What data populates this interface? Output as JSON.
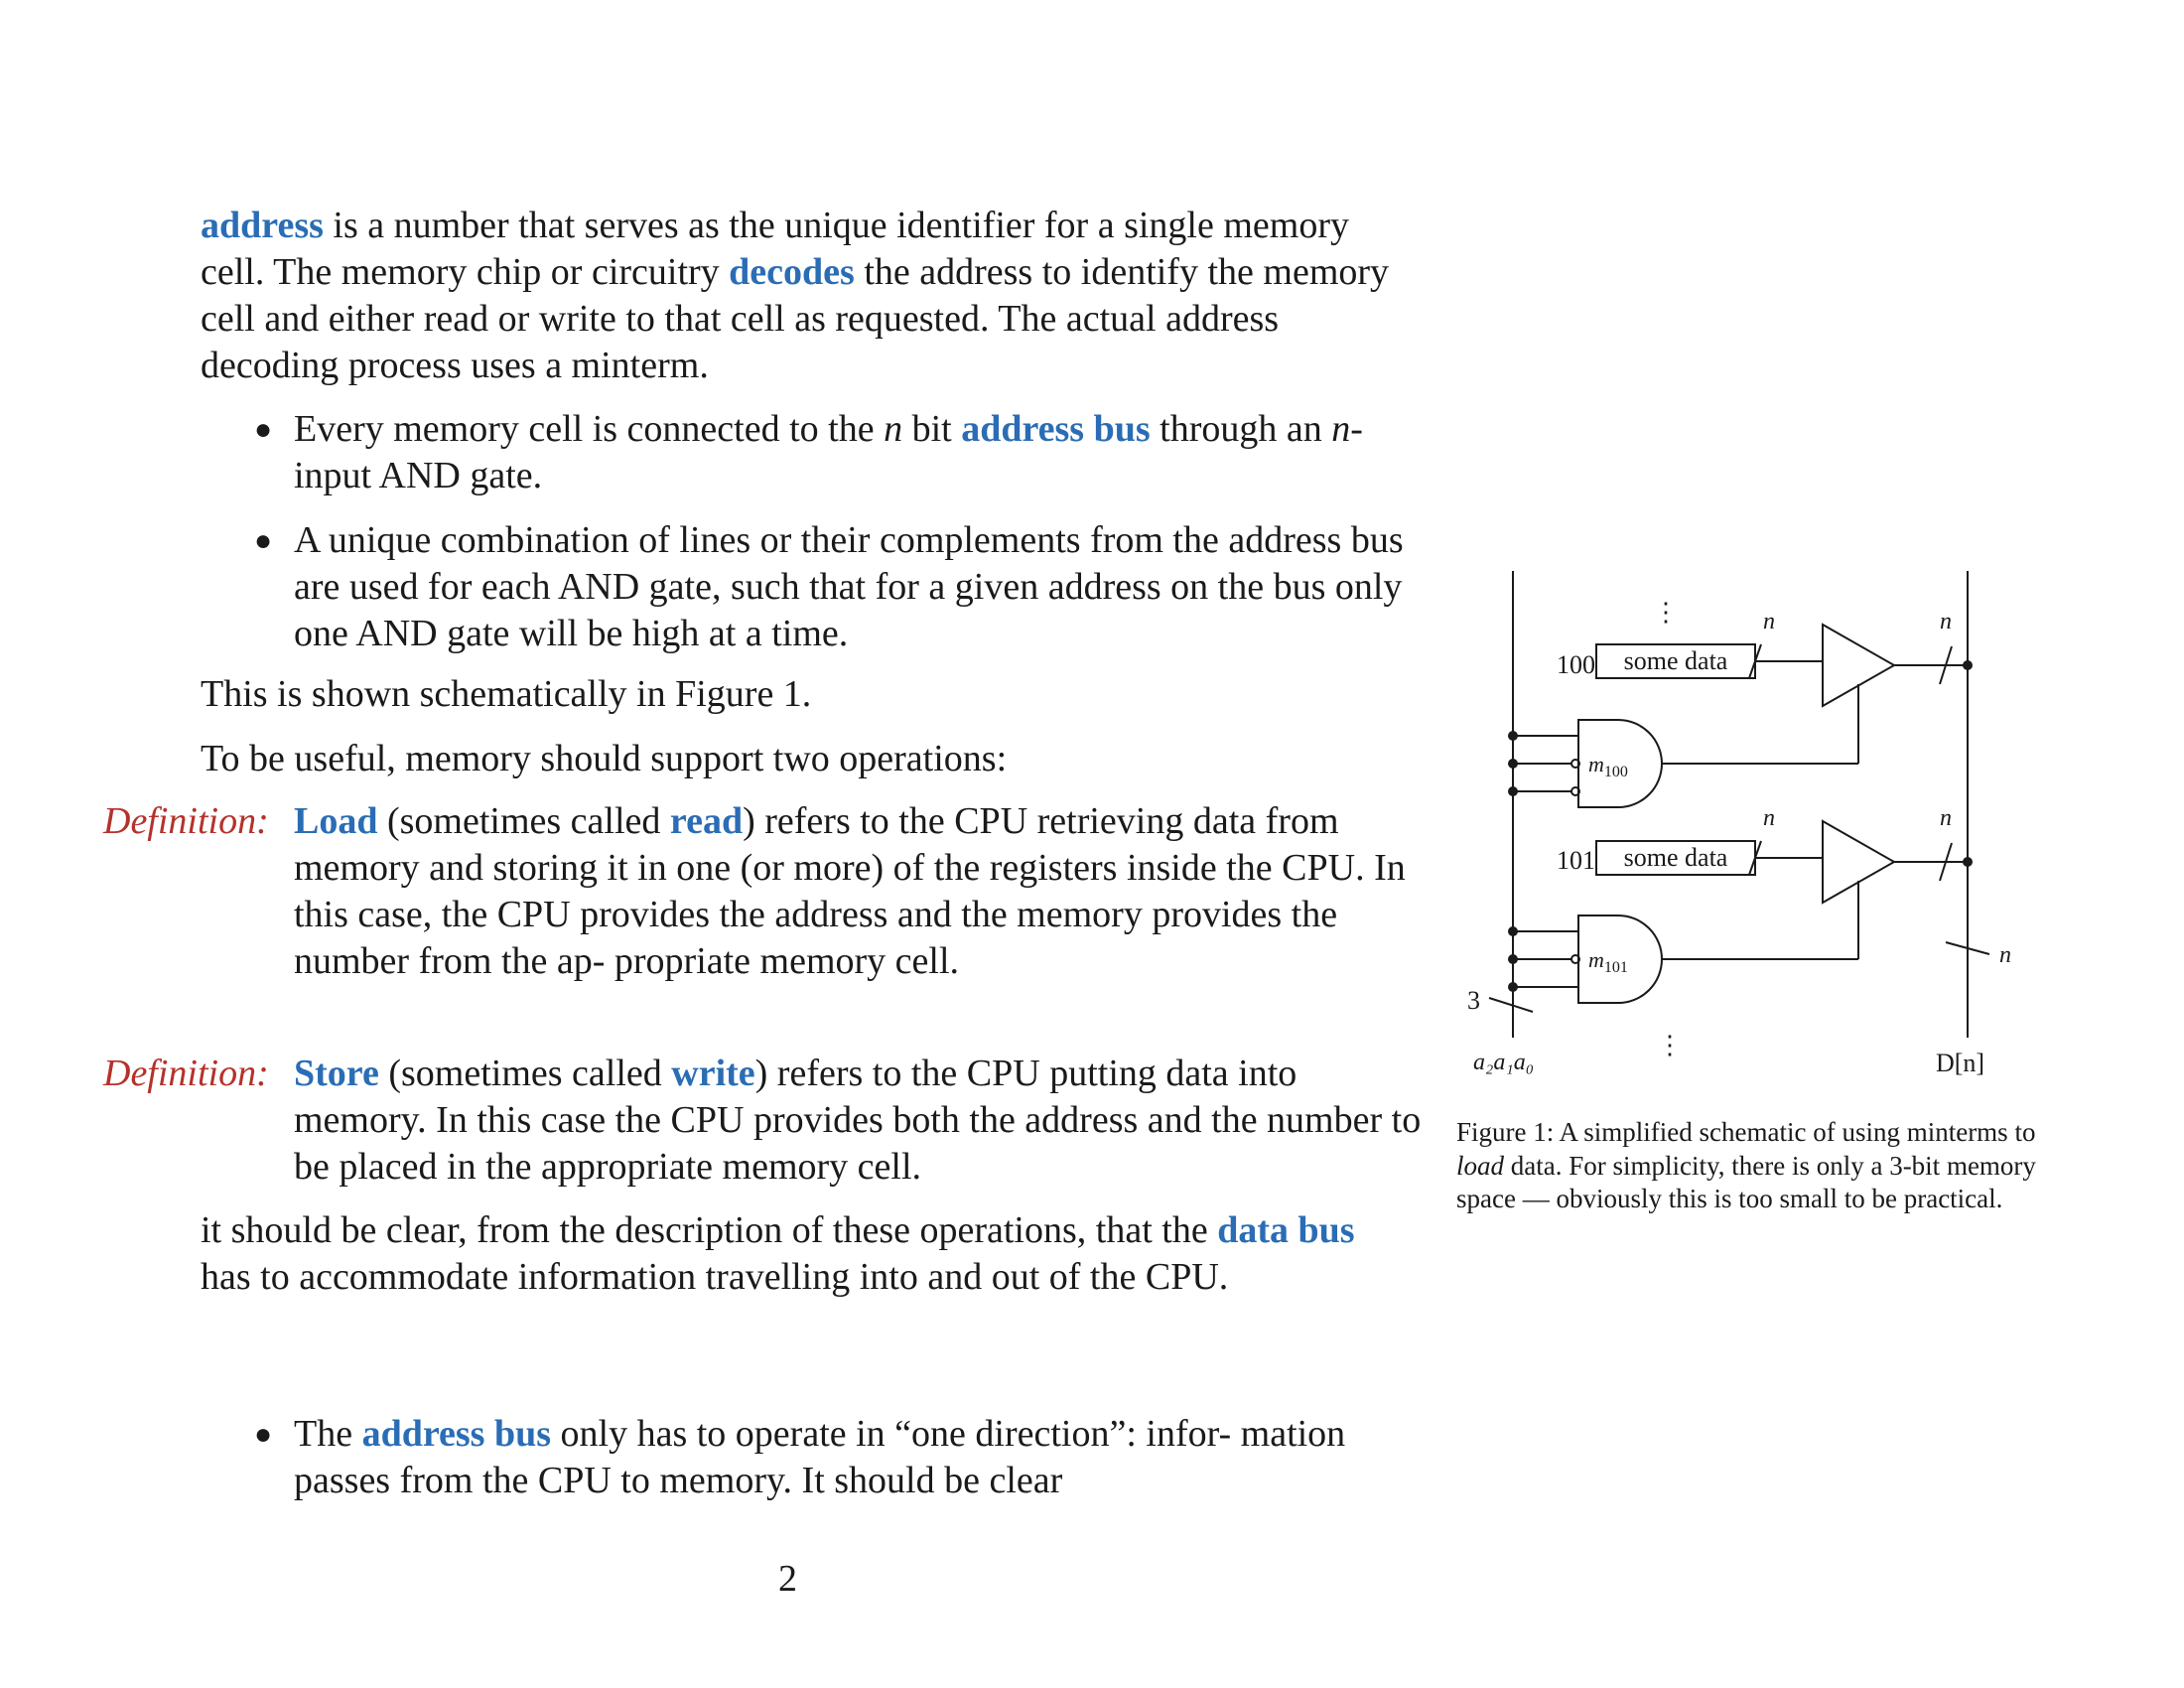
{
  "intro": {
    "address_term": "address",
    "t1": " is a number that serves as the unique identifier for a single memory cell. The memory chip or circuitry ",
    "decodes_term": "decodes",
    "t2": " the address to identify the memory cell and either read or write to that cell as requested. The actual address decoding process uses a minterm."
  },
  "bullets": [
    {
      "t1": "Every memory cell is connected to the ",
      "n1": "n",
      "t2": " bit ",
      "term": "address bus",
      "t3": " through an ",
      "n2": "n",
      "t4": "-input AND gate."
    },
    {
      "text": "A unique combination of lines or their complements from the address bus are used for each AND gate, such that for a given address on the bus only one AND gate will be high at a time."
    }
  ],
  "shown_paragraph": "This is shown schematically in Figure 1.",
  "useful_paragraph": "To be useful, memory should support two operations:",
  "definitions": [
    {
      "label": "Definition:",
      "term": "Load",
      "t1": " (sometimes called ",
      "alt": "read",
      "t2": ") refers to the CPU retrieving data from memory and storing it in one (or more) of the registers inside the CPU. In this case, the CPU provides the address and the memory provides the number from the ap- propriate memory cell."
    },
    {
      "label": "Definition:",
      "term": "Store",
      "t1": " (sometimes called ",
      "alt": "write",
      "t2": ") refers to the CPU putting data into memory. In this case the CPU provides both the address and the number to be placed in the appropriate memory cell."
    }
  ],
  "clear_paragraph": {
    "t1": "it should be clear, from the description of these operations, that the ",
    "term": "data bus",
    "t2": " has to accommodate information travelling into and out of the CPU."
  },
  "bullet3": {
    "t1": "The ",
    "term": "address bus",
    "t2": " only has to operate in “one direction”: infor- mation passes from the CPU to memory. It should be clear"
  },
  "page_number": "2",
  "figure": {
    "cells": [
      {
        "address": "100",
        "data_label": "some data",
        "minterm": "m",
        "minterm_sub": "100"
      },
      {
        "address": "101",
        "data_label": "some data",
        "minterm": "m",
        "minterm_sub": "101"
      }
    ],
    "bus_width_label": "n",
    "address_width": "3",
    "address_lines": "a₂a₁a₀",
    "data_bus_label": "D[n]",
    "ellipsis": "⋮",
    "caption": {
      "t1": "Figure 1: A simplified schematic of using minterms to ",
      "em": "load",
      "t2": " data. For simplicity, there is only a 3-bit memory space — obviously this is too small to be practical."
    }
  }
}
